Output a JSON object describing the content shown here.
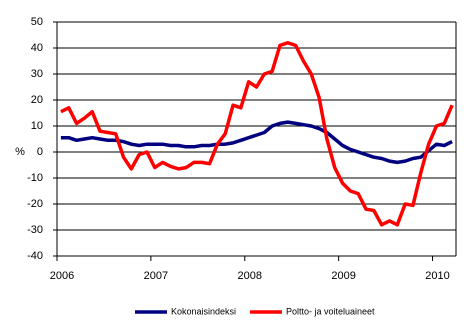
{
  "chart_data": {
    "type": "line",
    "y_label": "%",
    "categories": [
      "2006",
      null,
      null,
      null,
      null,
      null,
      null,
      null,
      null,
      null,
      null,
      null,
      "2007",
      null,
      null,
      null,
      null,
      null,
      null,
      null,
      null,
      null,
      null,
      null,
      "2008",
      null,
      null,
      null,
      null,
      null,
      null,
      null,
      null,
      null,
      null,
      null,
      "2009",
      null,
      null,
      null,
      null,
      null,
      null,
      null,
      null,
      null,
      null,
      null,
      "2010",
      null,
      null
    ],
    "series": [
      {
        "name": "Kokonaisindeksi",
        "color": "#000080",
        "values": [
          5.5,
          5.5,
          4.5,
          5,
          5.5,
          5,
          4.5,
          4.5,
          4,
          3,
          2.5,
          3,
          3,
          3,
          2.5,
          2.5,
          2,
          2,
          2.5,
          2.5,
          3,
          3,
          3.5,
          4.5,
          5.5,
          6.5,
          7.5,
          10,
          11,
          11.5,
          11,
          10.5,
          10,
          9,
          7.5,
          5,
          2.5,
          1,
          0,
          -1,
          -2,
          -2.5,
          -3.5,
          -4,
          -3.5,
          -2.5,
          -2,
          0.5,
          3,
          2.5,
          4
        ]
      },
      {
        "name": "Poltto- ja voiteluaineet",
        "color": "#ff0000",
        "values": [
          15.5,
          17,
          11,
          13,
          15.5,
          8,
          7.5,
          7,
          -2,
          -6.5,
          -1,
          0,
          -6,
          -4,
          -5.5,
          -6.5,
          -6,
          -4,
          -4,
          -4.5,
          3,
          7,
          18,
          17,
          27,
          25,
          30,
          31,
          41,
          42,
          41,
          35,
          30,
          21,
          5,
          -6,
          -12,
          -15,
          -16,
          -22,
          -22.5,
          -28,
          -26.5,
          -28,
          -20,
          -20.5,
          -8,
          3,
          10,
          11,
          18
        ]
      }
    ],
    "ylim": [
      -40,
      50
    ],
    "yticks": [
      -40,
      -30,
      -20,
      -10,
      0,
      10,
      20,
      30,
      40,
      50
    ],
    "grid": true
  }
}
